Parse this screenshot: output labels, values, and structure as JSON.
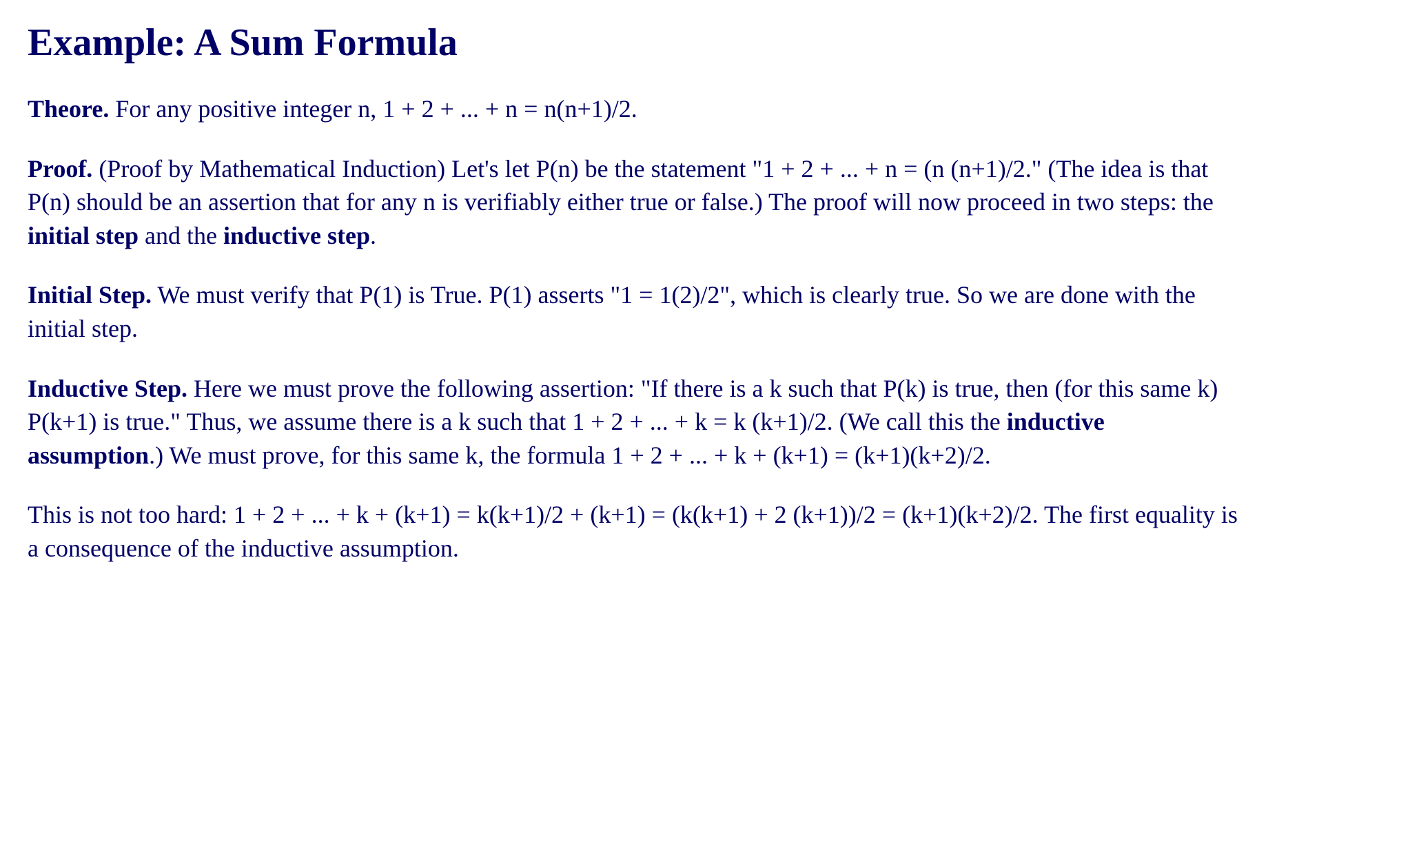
{
  "title": "Example: A Sum Formula",
  "theorem": {
    "label": "Theore.",
    "text": " For any positive integer n, 1 + 2 + ... + n = n(n+1)/2."
  },
  "proof": {
    "label": "Proof.",
    "text_a": " (Proof by Mathematical Induction) Let's let P(n) be the statement \"1 + 2 + ... + n = (n (n+1)/2.\" (The idea is that P(n) should be an assertion that for any n is verifiably either true or false.) The proof will now proceed in two steps: the ",
    "bold_a": "initial step",
    "text_b": " and the ",
    "bold_b": "inductive step",
    "text_c": "."
  },
  "initial": {
    "label": "Initial Step.",
    "text": " We must verify that P(1) is True. P(1) asserts \"1 = 1(2)/2\", which is clearly true. So we are done with the initial step."
  },
  "inductive": {
    "label": "Inductive Step.",
    "text_a": " Here we must prove the following assertion: \"If there is a k such that P(k) is true, then (for this same k) P(k+1) is true.\" Thus, we assume there is a k such that 1 + 2 + ... + k = k (k+1)/2. (We call this the ",
    "bold_a": "inductive assumption",
    "text_b": ".) We must prove, for this same k, the formula 1 + 2 + ... + k + (k+1) = (k+1)(k+2)/2."
  },
  "closing": {
    "text": "This is not too hard: 1 + 2 + ... + k + (k+1) = k(k+1)/2 + (k+1) = (k(k+1) + 2 (k+1))/2 = (k+1)(k+2)/2. The first equality is a consequence of the inductive assumption."
  }
}
